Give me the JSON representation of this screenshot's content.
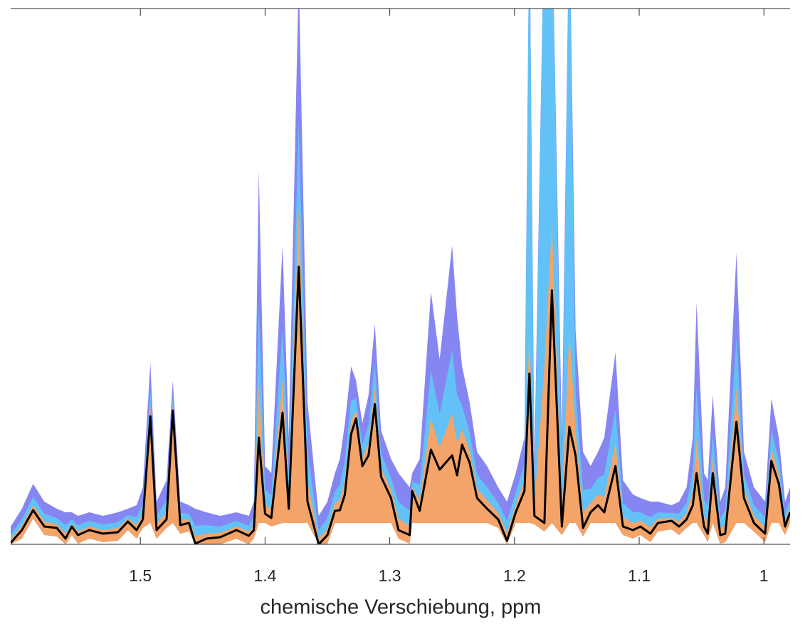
{
  "chart_data": {
    "type": "line",
    "x_label": "chemische Verschiebung, ppm",
    "xlim": [
      1.604,
      0.979
    ],
    "xticks": [
      1.5,
      1.4,
      1.3,
      1.2,
      1.1,
      1
    ],
    "ylim": [
      0,
      753
    ],
    "x": [
      1.604,
      1.595,
      1.586,
      1.577,
      1.567,
      1.56,
      1.555,
      1.55,
      1.541,
      1.53,
      1.518,
      1.51,
      1.503,
      1.498,
      1.492,
      1.487,
      1.479,
      1.474,
      1.468,
      1.461,
      1.456,
      1.447,
      1.436,
      1.423,
      1.413,
      1.409,
      1.405,
      1.4,
      1.395,
      1.386,
      1.381,
      1.373,
      1.366,
      1.357,
      1.35,
      1.344,
      1.34,
      1.336,
      1.331,
      1.327,
      1.322,
      1.317,
      1.312,
      1.307,
      1.299,
      1.293,
      1.284,
      1.282,
      1.276,
      1.267,
      1.26,
      1.25,
      1.246,
      1.242,
      1.236,
      1.23,
      1.222,
      1.213,
      1.206,
      1.199,
      1.192,
      1.188,
      1.184,
      1.176,
      1.17,
      1.162,
      1.156,
      1.151,
      1.145,
      1.139,
      1.133,
      1.128,
      1.119,
      1.113,
      1.105,
      1.099,
      1.091,
      1.085,
      1.074,
      1.068,
      1.062,
      1.057,
      1.054,
      1.048,
      1.045,
      1.041,
      1.035,
      1.031,
      1.022,
      1.016,
      1.008,
      0.999,
      0.994,
      0.988,
      0.983,
      0.979
    ],
    "lower": [
      0,
      8,
      36,
      13,
      11,
      0,
      13,
      1,
      8,
      3,
      5,
      20,
      8,
      23,
      30,
      8,
      23,
      30,
      15,
      18,
      0,
      0,
      0,
      8,
      0,
      8,
      30,
      30,
      25,
      30,
      30,
      30,
      30,
      0,
      1,
      30,
      30,
      30,
      30,
      30,
      30,
      30,
      30,
      30,
      30,
      8,
      1,
      30,
      30,
      30,
      30,
      30,
      30,
      30,
      30,
      30,
      30,
      23,
      0,
      30,
      30,
      30,
      28,
      18,
      30,
      13,
      30,
      30,
      11,
      30,
      30,
      30,
      30,
      13,
      8,
      13,
      3,
      18,
      21,
      13,
      23,
      30,
      30,
      13,
      3,
      30,
      1,
      3,
      30,
      30,
      18,
      3,
      30,
      30,
      13,
      30
    ],
    "bands": [
      {
        "color": "#8686f2",
        "upper": [
          25,
          50,
          85,
          60,
          50,
          45,
          45,
          40,
          45,
          40,
          45,
          50,
          55,
          80,
          255,
          60,
          90,
          230,
          60,
          55,
          50,
          45,
          40,
          45,
          40,
          60,
          525,
          110,
          100,
          420,
          150,
          800,
          200,
          40,
          60,
          100,
          120,
          170,
          250,
          230,
          170,
          210,
          310,
          160,
          120,
          100,
          80,
          100,
          120,
          355,
          260,
          420,
          320,
          250,
          200,
          130,
          110,
          80,
          60,
          100,
          150,
          900,
          120,
          900,
          900,
          150,
          900,
          300,
          130,
          110,
          130,
          150,
          270,
          90,
          70,
          65,
          60,
          60,
          55,
          60,
          80,
          150,
          340,
          100,
          90,
          210,
          60,
          80,
          410,
          130,
          80,
          60,
          205,
          150,
          60,
          80
        ]
      },
      {
        "color": "#62c2f7",
        "upper": [
          14,
          35,
          67,
          43,
          37,
          27,
          35,
          27,
          33,
          28,
          31,
          41,
          38,
          58,
          218,
          40,
          63,
          209,
          44,
          43,
          26,
          27,
          25,
          33,
          26,
          40,
          338,
          77,
          69,
          303,
          100,
          595,
          130,
          20,
          37,
          74,
          84,
          120,
          203,
          204,
          140,
          168,
          254,
          128,
          93,
          60,
          47,
          88,
          84,
          244,
          183,
          273,
          209,
          195,
          158,
          98,
          80,
          58,
          33,
          73,
          113,
          900,
          80,
          900,
          900,
          88,
          900,
          213,
          77,
          78,
          93,
          98,
          190,
          58,
          45,
          45,
          38,
          45,
          44,
          43,
          58,
          103,
          220,
          63,
          53,
          155,
          37,
          48,
          291,
          98,
          55,
          38,
          161,
          118,
          43,
          63
        ]
      },
      {
        "color": "#f4a468",
        "upper": [
          7,
          26,
          55,
          32,
          28,
          15,
          29,
          18,
          25,
          20,
          23,
          36,
          27,
          44,
          195,
          28,
          46,
          196,
          34,
          35,
          11,
          15,
          16,
          25,
          18,
          28,
          225,
          56,
          50,
          232,
          70,
          472,
          88,
          8,
          22,
          58,
          62,
          90,
          174,
          188,
          122,
          142,
          220,
          108,
          76,
          36,
          26,
          80,
          62,
          177,
          136,
          184,
          142,
          162,
          132,
          78,
          62,
          44,
          16,
          56,
          90,
          300,
          56,
          250,
          450,
          50,
          300,
          160,
          44,
          58,
          70,
          66,
          142,
          38,
          30,
          33,
          24,
          36,
          37,
          32,
          44,
          74,
          148,
          40,
          30,
          122,
          22,
          28,
          220,
          78,
          40,
          24,
          135,
          98,
          32,
          52
        ]
      }
    ],
    "series": [
      {
        "color": "#000000",
        "values": [
          2,
          20,
          48,
          25,
          23,
          8,
          25,
          13,
          20,
          15,
          17,
          32,
          20,
          35,
          180,
          20,
          35,
          188,
          27,
          30,
          1,
          8,
          10,
          20,
          12,
          20,
          150,
          43,
          37,
          185,
          50,
          390,
          60,
          0,
          13,
          47,
          48,
          70,
          155,
          177,
          110,
          125,
          197,
          95,
          65,
          20,
          13,
          75,
          47,
          133,
          105,
          125,
          97,
          140,
          115,
          65,
          50,
          35,
          5,
          45,
          75,
          240,
          40,
          30,
          357,
          25,
          165,
          125,
          23,
          45,
          55,
          45,
          110,
          25,
          20,
          25,
          15,
          30,
          33,
          25,
          35,
          55,
          100,
          25,
          15,
          100,
          13,
          15,
          172,
          65,
          30,
          15,
          117,
          85,
          25,
          45
        ]
      }
    ]
  }
}
